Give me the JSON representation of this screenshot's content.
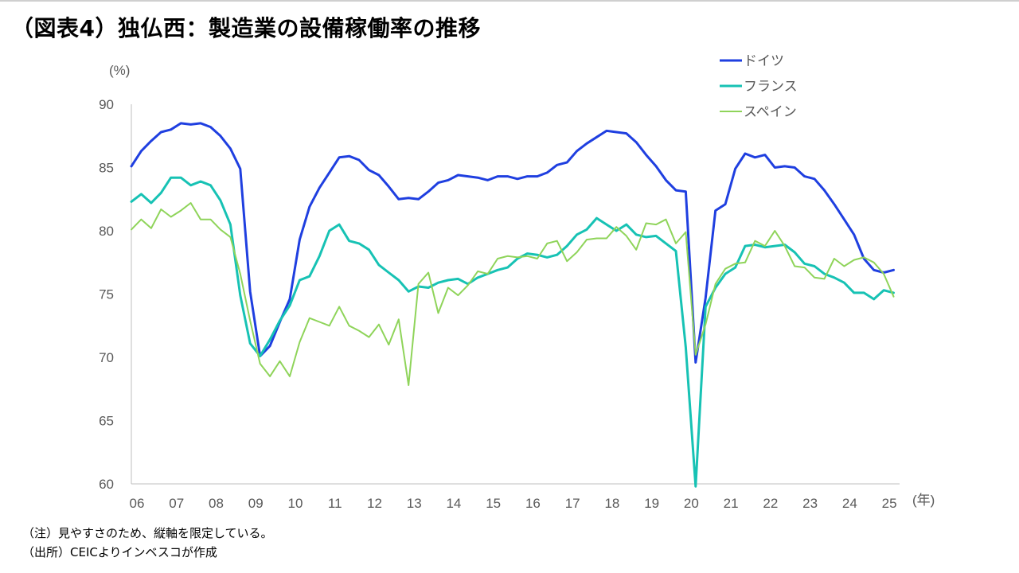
{
  "title": "（図表4）独仏西：製造業の設備稼働率の推移",
  "notes": {
    "note": "（注）見やすさのため、縦軸を限定している。",
    "source": "（出所）CEICよりインベスコが作成"
  },
  "chart_data": {
    "type": "line",
    "ylabel": "(%)",
    "xlabel": "(年)",
    "ylim": [
      60,
      90
    ],
    "yticks": [
      60,
      65,
      70,
      75,
      80,
      85,
      90
    ],
    "xlim": [
      2006,
      2025.4
    ],
    "x_tick_labels": [
      "06",
      "07",
      "08",
      "09",
      "10",
      "11",
      "12",
      "13",
      "14",
      "15",
      "16",
      "17",
      "18",
      "19",
      "20",
      "21",
      "22",
      "23",
      "24",
      "25"
    ],
    "legend_position": "top-right",
    "series": [
      {
        "name": "ドイツ",
        "color": "#1f3fe0",
        "points": [
          [
            2006,
            85.1
          ],
          [
            2006.25,
            86.3
          ],
          [
            2006.5,
            87.1
          ],
          [
            2006.75,
            87.8
          ],
          [
            2007,
            88.0
          ],
          [
            2007.25,
            88.5
          ],
          [
            2007.5,
            88.4
          ],
          [
            2007.75,
            88.5
          ],
          [
            2008,
            88.2
          ],
          [
            2008.25,
            87.5
          ],
          [
            2008.5,
            86.5
          ],
          [
            2008.75,
            84.9
          ],
          [
            2009,
            75.2
          ],
          [
            2009.25,
            70.1
          ],
          [
            2009.5,
            70.9
          ],
          [
            2009.75,
            72.8
          ],
          [
            2010,
            74.6
          ],
          [
            2010.25,
            79.3
          ],
          [
            2010.5,
            81.9
          ],
          [
            2010.75,
            83.4
          ],
          [
            2011,
            84.6
          ],
          [
            2011.25,
            85.8
          ],
          [
            2011.5,
            85.9
          ],
          [
            2011.75,
            85.6
          ],
          [
            2012,
            84.8
          ],
          [
            2012.25,
            84.4
          ],
          [
            2012.5,
            83.5
          ],
          [
            2012.75,
            82.5
          ],
          [
            2013,
            82.6
          ],
          [
            2013.25,
            82.5
          ],
          [
            2013.5,
            83.1
          ],
          [
            2013.75,
            83.8
          ],
          [
            2014,
            84.0
          ],
          [
            2014.25,
            84.4
          ],
          [
            2014.5,
            84.3
          ],
          [
            2014.75,
            84.2
          ],
          [
            2015,
            84.0
          ],
          [
            2015.25,
            84.3
          ],
          [
            2015.5,
            84.3
          ],
          [
            2015.75,
            84.1
          ],
          [
            2016,
            84.3
          ],
          [
            2016.25,
            84.3
          ],
          [
            2016.5,
            84.6
          ],
          [
            2016.75,
            85.2
          ],
          [
            2017,
            85.4
          ],
          [
            2017.25,
            86.3
          ],
          [
            2017.5,
            86.9
          ],
          [
            2017.75,
            87.4
          ],
          [
            2018,
            87.9
          ],
          [
            2018.25,
            87.8
          ],
          [
            2018.5,
            87.7
          ],
          [
            2018.75,
            87.0
          ],
          [
            2019,
            86.0
          ],
          [
            2019.25,
            85.1
          ],
          [
            2019.5,
            84.0
          ],
          [
            2019.75,
            83.2
          ],
          [
            2020,
            83.1
          ],
          [
            2020.25,
            69.6
          ],
          [
            2020.5,
            74.7
          ],
          [
            2020.75,
            81.6
          ],
          [
            2021,
            82.1
          ],
          [
            2021.25,
            84.9
          ],
          [
            2021.5,
            86.1
          ],
          [
            2021.75,
            85.8
          ],
          [
            2022,
            86.0
          ],
          [
            2022.25,
            85.0
          ],
          [
            2022.5,
            85.1
          ],
          [
            2022.75,
            85.0
          ],
          [
            2023,
            84.3
          ],
          [
            2023.25,
            84.1
          ],
          [
            2023.5,
            83.2
          ],
          [
            2023.75,
            82.1
          ],
          [
            2024,
            80.9
          ],
          [
            2024.25,
            79.7
          ],
          [
            2024.5,
            77.8
          ],
          [
            2024.75,
            76.9
          ],
          [
            2025,
            76.7
          ],
          [
            2025.25,
            76.9
          ]
        ]
      },
      {
        "name": "フランス",
        "color": "#17c2b4",
        "points": [
          [
            2006,
            82.3
          ],
          [
            2006.25,
            82.9
          ],
          [
            2006.5,
            82.2
          ],
          [
            2006.75,
            83.0
          ],
          [
            2007,
            84.2
          ],
          [
            2007.25,
            84.2
          ],
          [
            2007.5,
            83.6
          ],
          [
            2007.75,
            83.9
          ],
          [
            2008,
            83.6
          ],
          [
            2008.25,
            82.4
          ],
          [
            2008.5,
            80.5
          ],
          [
            2008.75,
            74.9
          ],
          [
            2009,
            71.1
          ],
          [
            2009.25,
            70.1
          ],
          [
            2009.5,
            71.4
          ],
          [
            2009.75,
            72.9
          ],
          [
            2010,
            74.1
          ],
          [
            2010.25,
            76.1
          ],
          [
            2010.5,
            76.4
          ],
          [
            2010.75,
            78.0
          ],
          [
            2011,
            80.0
          ],
          [
            2011.25,
            80.5
          ],
          [
            2011.5,
            79.2
          ],
          [
            2011.75,
            79.0
          ],
          [
            2012,
            78.5
          ],
          [
            2012.25,
            77.3
          ],
          [
            2012.5,
            76.7
          ],
          [
            2012.75,
            76.1
          ],
          [
            2013,
            75.2
          ],
          [
            2013.25,
            75.6
          ],
          [
            2013.5,
            75.5
          ],
          [
            2013.75,
            75.9
          ],
          [
            2014,
            76.1
          ],
          [
            2014.25,
            76.2
          ],
          [
            2014.5,
            75.8
          ],
          [
            2014.75,
            76.3
          ],
          [
            2015,
            76.6
          ],
          [
            2015.25,
            76.9
          ],
          [
            2015.5,
            77.1
          ],
          [
            2015.75,
            77.8
          ],
          [
            2016,
            78.2
          ],
          [
            2016.25,
            78.1
          ],
          [
            2016.5,
            77.9
          ],
          [
            2016.75,
            78.1
          ],
          [
            2017,
            78.8
          ],
          [
            2017.25,
            79.7
          ],
          [
            2017.5,
            80.1
          ],
          [
            2017.75,
            81.0
          ],
          [
            2018,
            80.5
          ],
          [
            2018.25,
            80.0
          ],
          [
            2018.5,
            80.5
          ],
          [
            2018.75,
            79.7
          ],
          [
            2019,
            79.5
          ],
          [
            2019.25,
            79.6
          ],
          [
            2019.5,
            79.0
          ],
          [
            2019.75,
            78.4
          ],
          [
            2020,
            70.8
          ],
          [
            2020.25,
            59.8
          ],
          [
            2020.5,
            74.0
          ],
          [
            2020.75,
            75.5
          ],
          [
            2021,
            76.6
          ],
          [
            2021.25,
            77.1
          ],
          [
            2021.5,
            78.8
          ],
          [
            2021.75,
            78.9
          ],
          [
            2022,
            78.7
          ],
          [
            2022.25,
            78.8
          ],
          [
            2022.5,
            78.9
          ],
          [
            2022.75,
            78.3
          ],
          [
            2023,
            77.4
          ],
          [
            2023.25,
            77.2
          ],
          [
            2023.5,
            76.6
          ],
          [
            2023.75,
            76.3
          ],
          [
            2024,
            75.9
          ],
          [
            2024.25,
            75.1
          ],
          [
            2024.5,
            75.1
          ],
          [
            2024.75,
            74.6
          ],
          [
            2025,
            75.3
          ],
          [
            2025.25,
            75.1
          ]
        ]
      },
      {
        "name": "スペイン",
        "color": "#8fd45a",
        "points": [
          [
            2006,
            80.1
          ],
          [
            2006.25,
            80.9
          ],
          [
            2006.5,
            80.2
          ],
          [
            2006.75,
            81.7
          ],
          [
            2007,
            81.1
          ],
          [
            2007.25,
            81.6
          ],
          [
            2007.5,
            82.2
          ],
          [
            2007.75,
            80.9
          ],
          [
            2008,
            80.9
          ],
          [
            2008.25,
            80.1
          ],
          [
            2008.5,
            79.5
          ],
          [
            2008.75,
            76.6
          ],
          [
            2009,
            72.9
          ],
          [
            2009.25,
            69.5
          ],
          [
            2009.5,
            68.5
          ],
          [
            2009.75,
            69.7
          ],
          [
            2010,
            68.5
          ],
          [
            2010.25,
            71.2
          ],
          [
            2010.5,
            73.1
          ],
          [
            2010.75,
            72.8
          ],
          [
            2011,
            72.5
          ],
          [
            2011.25,
            74.0
          ],
          [
            2011.5,
            72.5
          ],
          [
            2011.75,
            72.1
          ],
          [
            2012,
            71.6
          ],
          [
            2012.25,
            72.6
          ],
          [
            2012.5,
            71.0
          ],
          [
            2012.75,
            73.0
          ],
          [
            2013,
            67.8
          ],
          [
            2013.25,
            75.8
          ],
          [
            2013.5,
            76.7
          ],
          [
            2013.75,
            73.5
          ],
          [
            2014,
            75.5
          ],
          [
            2014.25,
            74.9
          ],
          [
            2014.5,
            75.7
          ],
          [
            2014.75,
            76.8
          ],
          [
            2015,
            76.6
          ],
          [
            2015.25,
            77.8
          ],
          [
            2015.5,
            78.0
          ],
          [
            2015.75,
            77.9
          ],
          [
            2016,
            78.0
          ],
          [
            2016.25,
            77.8
          ],
          [
            2016.5,
            79.0
          ],
          [
            2016.75,
            79.2
          ],
          [
            2017,
            77.6
          ],
          [
            2017.25,
            78.3
          ],
          [
            2017.5,
            79.3
          ],
          [
            2017.75,
            79.4
          ],
          [
            2018,
            79.4
          ],
          [
            2018.25,
            80.3
          ],
          [
            2018.5,
            79.6
          ],
          [
            2018.75,
            78.5
          ],
          [
            2019,
            80.6
          ],
          [
            2019.25,
            80.5
          ],
          [
            2019.5,
            80.9
          ],
          [
            2019.75,
            79.0
          ],
          [
            2020,
            79.9
          ],
          [
            2020.25,
            70.2
          ],
          [
            2020.5,
            72.6
          ],
          [
            2020.75,
            75.8
          ],
          [
            2021,
            77.0
          ],
          [
            2021.25,
            77.4
          ],
          [
            2021.5,
            77.5
          ],
          [
            2021.75,
            79.2
          ],
          [
            2022,
            78.8
          ],
          [
            2022.25,
            80.0
          ],
          [
            2022.5,
            78.8
          ],
          [
            2022.75,
            77.2
          ],
          [
            2023,
            77.1
          ],
          [
            2023.25,
            76.3
          ],
          [
            2023.5,
            76.2
          ],
          [
            2023.75,
            77.8
          ],
          [
            2024,
            77.2
          ],
          [
            2024.25,
            77.7
          ],
          [
            2024.5,
            77.9
          ],
          [
            2024.75,
            77.5
          ],
          [
            2025,
            76.6
          ],
          [
            2025.25,
            74.8
          ]
        ]
      }
    ]
  }
}
